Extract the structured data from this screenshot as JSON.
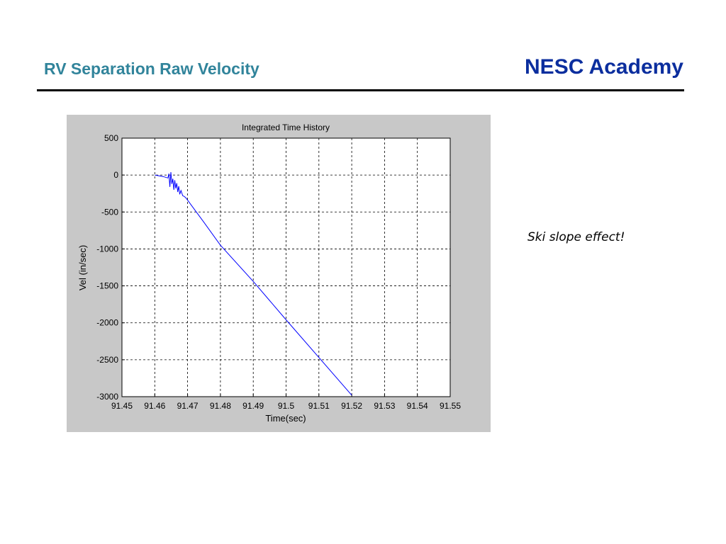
{
  "slide": {
    "title": "RV Separation Raw Velocity",
    "brand": "NESC Academy",
    "note": "Ski slope effect!"
  },
  "chart_data": {
    "type": "line",
    "title": "Integrated Time History",
    "xlabel": "Time(sec)",
    "ylabel": "Vel (in/sec)",
    "xlim": [
      91.45,
      91.55
    ],
    "ylim": [
      -3000,
      500
    ],
    "xticks": [
      "91.45",
      "91.46",
      "91.47",
      "91.48",
      "91.49",
      "91.5",
      "91.51",
      "91.52",
      "91.53",
      "91.54",
      "91.55"
    ],
    "yticks": [
      "500",
      "0",
      "-500",
      "-1000",
      "-1500",
      "-2000",
      "-2500",
      "-3000"
    ],
    "grid": true,
    "colors": {
      "line": "#0000ff",
      "background": "#c8c8c8",
      "plot": "#ffffff"
    },
    "series": [
      {
        "x": [
          91.46,
          91.4625,
          91.464,
          91.4643,
          91.4646,
          91.4649,
          91.4652,
          91.4655,
          91.4658,
          91.4661,
          91.4664,
          91.4667,
          91.467,
          91.4673,
          91.4676,
          91.468,
          91.4685,
          91.469,
          91.4695,
          91.47,
          91.475,
          91.48,
          91.49,
          91.5,
          91.51,
          91.52
        ],
        "y": [
          0,
          -20,
          -40,
          20,
          -160,
          40,
          -120,
          -50,
          -200,
          -70,
          -180,
          -110,
          -230,
          -150,
          -260,
          -210,
          -280,
          -290,
          -310,
          -340,
          -640,
          -950,
          -1440,
          -1960,
          -2470,
          -2980
        ]
      }
    ]
  }
}
